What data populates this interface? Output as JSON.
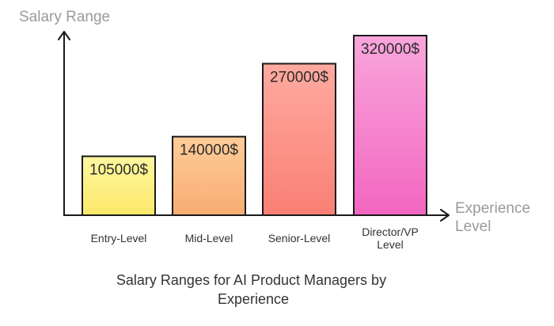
{
  "chart_data": {
    "type": "bar",
    "title_lines": [
      "Salary Ranges for AI Product Managers by",
      "Experience"
    ],
    "ylabel": "Salary Range",
    "xlabel_lines": [
      "Experience",
      "Level"
    ],
    "categories": [
      [
        "Entry-Level"
      ],
      [
        "Mid-Level"
      ],
      [
        "Senior-Level"
      ],
      [
        "Director/VP",
        "Level"
      ]
    ],
    "values": [
      105000,
      140000,
      270000,
      320000
    ],
    "value_labels": [
      "105000$",
      "140000$",
      "270000$",
      "320000$"
    ],
    "ylim": [
      0,
      320000
    ],
    "grid": false,
    "colors": [
      [
        "#fff7a0",
        "#fbe86a"
      ],
      [
        "#ffcc99",
        "#f7ad72"
      ],
      [
        "#ffaaa0",
        "#f97f74"
      ],
      [
        "#f9a6dc",
        "#f266c0"
      ]
    ],
    "stroke_color": "#1a1a1a"
  }
}
